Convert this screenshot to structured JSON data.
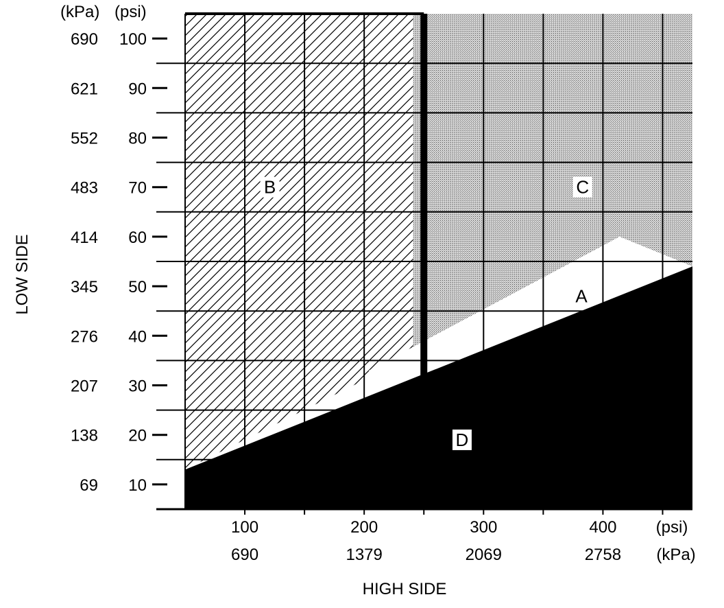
{
  "chart_data": {
    "type": "area",
    "xlabel": "HIGH SIDE",
    "ylabel": "LOW SIDE",
    "x_unit_psi": "(psi)",
    "x_unit_kpa": "(kPa)",
    "y_unit_kpa": "(kPa)",
    "y_unit_psi": "(psi)",
    "xlim_psi": [
      50,
      475
    ],
    "ylim_psi": [
      5,
      105
    ],
    "x_ticks": [
      {
        "psi": 100,
        "psi_label": "100",
        "kpa_label": "690"
      },
      {
        "psi": 200,
        "psi_label": "200",
        "kpa_label": "1379"
      },
      {
        "psi": 300,
        "psi_label": "300",
        "kpa_label": "2069"
      },
      {
        "psi": 400,
        "psi_label": "400",
        "kpa_label": "2758"
      }
    ],
    "x_minor_ticks_psi": [
      150,
      250,
      350,
      450
    ],
    "y_ticks": [
      {
        "psi": 100,
        "psi_label": "100",
        "kpa_label": "690"
      },
      {
        "psi": 90,
        "psi_label": "90",
        "kpa_label": "621"
      },
      {
        "psi": 80,
        "psi_label": "80",
        "kpa_label": "552"
      },
      {
        "psi": 70,
        "psi_label": "70",
        "kpa_label": "483"
      },
      {
        "psi": 60,
        "psi_label": "60",
        "kpa_label": "414"
      },
      {
        "psi": 50,
        "psi_label": "50",
        "kpa_label": "345"
      },
      {
        "psi": 40,
        "psi_label": "40",
        "kpa_label": "276"
      },
      {
        "psi": 30,
        "psi_label": "30",
        "kpa_label": "207"
      },
      {
        "psi": 20,
        "psi_label": "20",
        "kpa_label": "138"
      },
      {
        "psi": 10,
        "psi_label": "10",
        "kpa_label": "69"
      }
    ],
    "grid_x_psi": [
      100,
      150,
      200,
      250,
      300,
      350,
      400,
      450
    ],
    "grid_y_psi": [
      15,
      25,
      35,
      45,
      55,
      65,
      75,
      85,
      95
    ],
    "divider_x_psi": 250,
    "regions": [
      {
        "label": "B",
        "fill": "diagonal-hatch",
        "label_at": [
          121,
          70
        ],
        "polygon": [
          [
            50,
            105
          ],
          [
            241,
            105
          ],
          [
            241,
            36
          ],
          [
            50,
            13
          ]
        ]
      },
      {
        "label": "C",
        "fill": "dotted-gray",
        "label_at": [
          383,
          70
        ],
        "polygon": [
          [
            241,
            105
          ],
          [
            475,
            105
          ],
          [
            475,
            54
          ],
          [
            414,
            60
          ],
          [
            241,
            36
          ]
        ]
      },
      {
        "label": "A",
        "fill": "white",
        "label_at": [
          382,
          48
        ],
        "polygon": [
          [
            204,
            33
          ],
          [
            414,
            60
          ],
          [
            414,
            47
          ],
          [
            204,
            26
          ]
        ]
      },
      {
        "label": "D",
        "fill": "black",
        "label_at": [
          282,
          19
        ],
        "polygon": [
          [
            50,
            13
          ],
          [
            475,
            54
          ],
          [
            475,
            5
          ],
          [
            50,
            5
          ]
        ]
      }
    ],
    "colors": {
      "hatch": "#000000",
      "dotted_background": "#c8c8c8",
      "dark_region": "#000000",
      "grid": "#000000"
    }
  }
}
